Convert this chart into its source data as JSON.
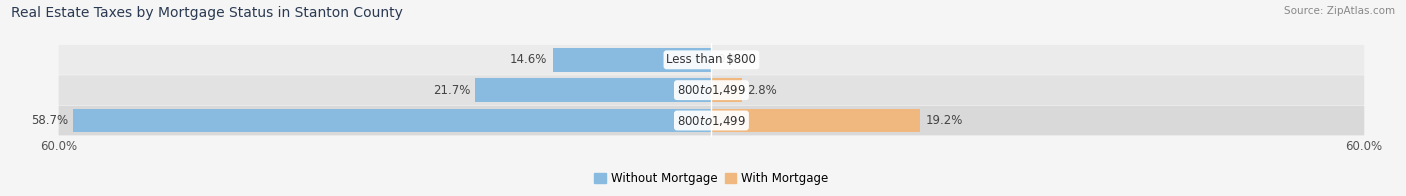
{
  "title": "Real Estate Taxes by Mortgage Status in Stanton County",
  "source": "Source: ZipAtlas.com",
  "rows": [
    {
      "label": "Less than $800",
      "without_mortgage": 14.6,
      "with_mortgage": 0.0
    },
    {
      "label": "$800 to $1,499",
      "without_mortgage": 21.7,
      "with_mortgage": 2.8
    },
    {
      "label": "$800 to $1,499",
      "without_mortgage": 58.7,
      "with_mortgage": 19.2
    }
  ],
  "max_value": 60.0,
  "color_without": "#88bbdf",
  "color_with": "#f0b87e",
  "bg_light": "#ebebeb",
  "bg_mid": "#e2e2e2",
  "bg_dark": "#d9d9d9",
  "fig_bg": "#f5f5f5",
  "title_fontsize": 10,
  "label_fontsize": 8.5,
  "tick_fontsize": 8.5,
  "legend_fontsize": 8.5,
  "source_fontsize": 7.5
}
